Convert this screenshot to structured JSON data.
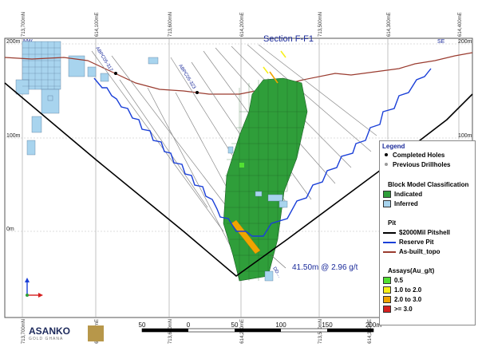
{
  "title": "Section F-F1",
  "direction_left": "NW",
  "direction_right": "SE",
  "elevation_labels": {
    "left": [
      "200m",
      "100m",
      "0m"
    ],
    "right": [
      "200m",
      "100m"
    ]
  },
  "top_coords": [
    "713,700mN",
    "614,100mE",
    "713,600mN",
    "614,200mE",
    "713,500mN",
    "614,300mE",
    "614,400mE"
  ],
  "bottom_coords": [
    "713,700mN",
    "614,100mE",
    "713,600mN",
    "614,200mE",
    "713,500mN",
    "614,300mE"
  ],
  "hole_labels": [
    "ABPC05-317",
    "ABPC05-323",
    "DD…"
  ],
  "intercept": "41.50m @ 2.96 g/t",
  "scale_labels": [
    "50",
    "0",
    "50",
    "100",
    "150",
    "200m"
  ],
  "logo": {
    "name": "ASANKO",
    "sub": "GOLD GHANA"
  },
  "legend": {
    "title": "Legend",
    "completed_holes": "Completed Holes",
    "previous_drillholes": "Previous Drillholes",
    "block_heading": "Block Model Classification",
    "indicated": "Indicated",
    "inferred": "Inferred",
    "pit_heading": "Pit",
    "pitshell": "$2000Mil Pitshell",
    "reserve_pit": "Reserve Pit",
    "topo": "As-built_topo",
    "assays_heading": "Assays(Au_g/t)",
    "a1": "0.5",
    "a2": "1.0 to 2.0",
    "a3": "2.0 to 3.0",
    "a4": ">= 3.0"
  },
  "colors": {
    "indicated": "#2f9e3a",
    "inferred": "#a8d4ee",
    "pitshell": "#000000",
    "reserve": "#1a3fd8",
    "topo": "#9a3b2f",
    "a1": "#52e032",
    "a2": "#f6ef1a",
    "a3": "#f0a400",
    "a4": "#d62020"
  }
}
